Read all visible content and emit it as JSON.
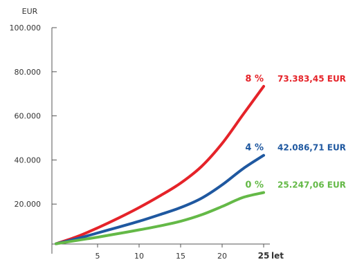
{
  "chart_data": {
    "type": "line",
    "ylabel": "EUR",
    "xlabel": "let",
    "ylim": [
      0,
      100000
    ],
    "xlim": [
      0,
      25
    ],
    "y_ticks": [
      {
        "value": 20000,
        "label": "20.000"
      },
      {
        "value": 40000,
        "label": "40.000"
      },
      {
        "value": 60000,
        "label": "60.000"
      },
      {
        "value": 80000,
        "label": "80.000"
      },
      {
        "value": 100000,
        "label": "100.000"
      }
    ],
    "x_ticks": [
      {
        "value": 5,
        "label": "5"
      },
      {
        "value": 10,
        "label": "10"
      },
      {
        "value": 15,
        "label": "15"
      },
      {
        "value": 20,
        "label": "20"
      },
      {
        "value": 25,
        "label": "25"
      }
    ],
    "grid": false,
    "series": [
      {
        "rate_label": "8 %",
        "end_label": "73.383,45 EUR",
        "color": "#e52329",
        "x": [
          0,
          2.5,
          5,
          7.5,
          10,
          12.5,
          15,
          17.5,
          20,
          22.5,
          25
        ],
        "y": [
          2000,
          5200,
          9200,
          13600,
          18400,
          23700,
          29500,
          37000,
          47500,
          60500,
          73383
        ]
      },
      {
        "rate_label": "4 %",
        "end_label": "42.086,71 EUR",
        "color": "#1f58a0",
        "x": [
          0,
          2.5,
          5,
          7.5,
          10,
          12.5,
          15,
          17.5,
          20,
          22.5,
          25
        ],
        "y": [
          2000,
          4300,
          6900,
          9500,
          12200,
          15200,
          18400,
          22600,
          28700,
          36000,
          42087
        ]
      },
      {
        "rate_label": "0 %",
        "end_label": "25.247,06 EUR",
        "color": "#64b947",
        "x": [
          0,
          2.5,
          5,
          7.5,
          10,
          12.5,
          15,
          17.5,
          20,
          22.5,
          25
        ],
        "y": [
          2000,
          3500,
          5000,
          6600,
          8300,
          10100,
          12200,
          15100,
          18900,
          23000,
          25247
        ]
      }
    ]
  }
}
